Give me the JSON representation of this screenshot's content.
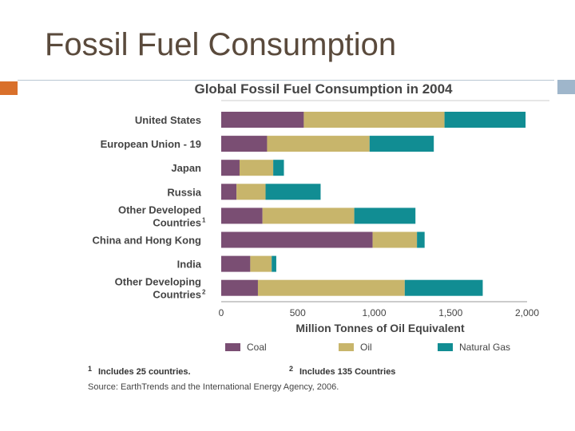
{
  "slide": {
    "title": "Fossil Fuel Consumption"
  },
  "colors": {
    "coal": "#7a4e73",
    "oil": "#c8b56b",
    "gas": "#118d93",
    "title": "#5a4a3c",
    "accent_orange": "#d9702b",
    "accent_blue": "#9fb6cb"
  },
  "chart_data": {
    "type": "bar",
    "stacked": true,
    "orientation": "horizontal",
    "title": "Global Fossil Fuel Consumption in 2004",
    "xlabel": "Million Tonnes of Oil Equivalent",
    "ylabel": "",
    "xlim": [
      0,
      2000
    ],
    "xticks": [
      "0",
      "500",
      "1,000",
      "1,500",
      "2,000"
    ],
    "categories": [
      {
        "lines": [
          "United States"
        ],
        "superscript": ""
      },
      {
        "lines": [
          "European Union - 19"
        ],
        "superscript": ""
      },
      {
        "lines": [
          "Japan"
        ],
        "superscript": ""
      },
      {
        "lines": [
          "Russia"
        ],
        "superscript": ""
      },
      {
        "lines": [
          "Other Developed",
          "Countries"
        ],
        "superscript": "1"
      },
      {
        "lines": [
          "China and Hong Kong"
        ],
        "superscript": ""
      },
      {
        "lines": [
          "India"
        ],
        "superscript": ""
      },
      {
        "lines": [
          "Other Developing",
          "Countries"
        ],
        "superscript": "2"
      }
    ],
    "series": [
      {
        "name": "Coal",
        "color": "#7a4e73",
        "values": [
          540,
          300,
          120,
          100,
          270,
          990,
          190,
          240
        ]
      },
      {
        "name": "Oil",
        "color": "#c8b56b",
        "values": [
          920,
          670,
          220,
          190,
          600,
          290,
          140,
          960
        ]
      },
      {
        "name": "Natural Gas",
        "color": "#118d93",
        "values": [
          530,
          420,
          70,
          360,
          400,
          50,
          30,
          510
        ]
      }
    ],
    "legend_position": "bottom",
    "footnotes": [
      {
        "mark": "1",
        "text": "Includes 25 countries."
      },
      {
        "mark": "2",
        "text": "Includes 135 Countries"
      }
    ],
    "source": "Source: EarthTrends and the International Energy Agency, 2006."
  }
}
